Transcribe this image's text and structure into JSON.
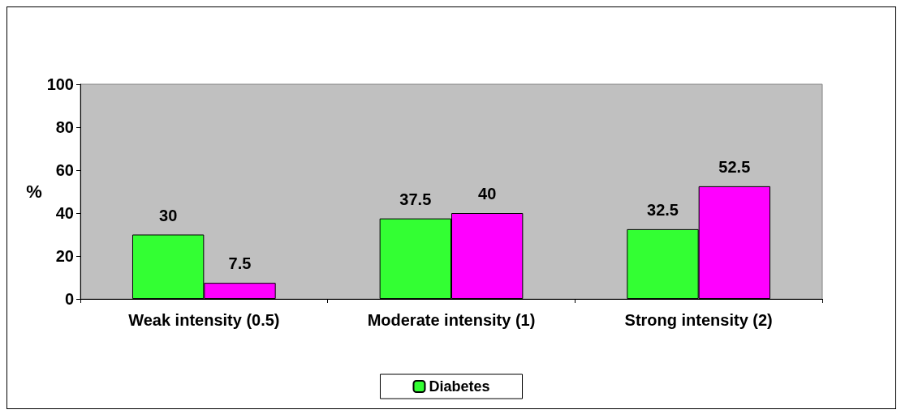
{
  "chart_data": {
    "type": "bar",
    "ylabel": "%",
    "categories": [
      "Weak intensity (0.5)",
      "Moderate intensity (1)",
      "Strong intensity (2)"
    ],
    "series": [
      {
        "name": "Diabetes",
        "color": "#33ff33",
        "values": [
          30,
          37.5,
          32.5
        ]
      },
      {
        "color": "#ff00ff",
        "values": [
          7.5,
          40,
          52.5
        ]
      }
    ],
    "ylim": [
      0,
      100
    ],
    "yticks": [
      0,
      20,
      40,
      60,
      80,
      100
    ],
    "data_labels": true,
    "legend": "bottom"
  }
}
